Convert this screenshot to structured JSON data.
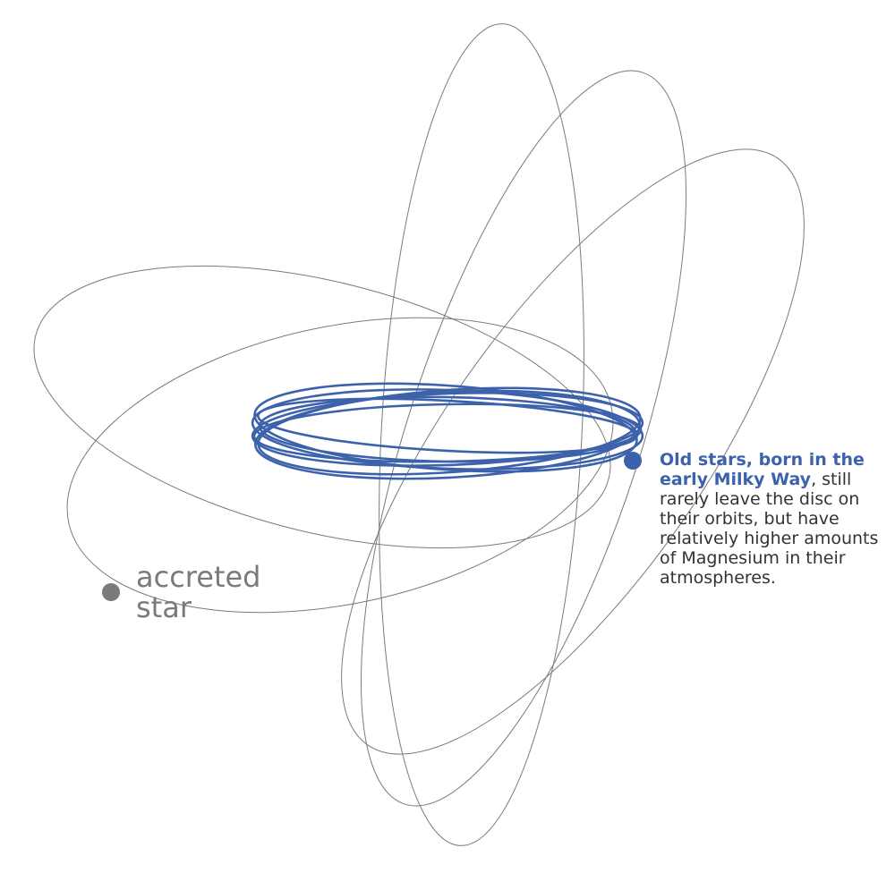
{
  "colors": {
    "orbit_gray": "#7a7a7a",
    "orbit_blue": "#3c62ac",
    "text_dark": "#333333"
  },
  "accreted_star": {
    "line1": "accreted",
    "line2": "star"
  },
  "old_stars": {
    "highlight": "Old stars, born in the early Milky Way",
    "comma": ",",
    "body": " still rarely leave the disc on their orbits, but have relatively higher amounts of Magnesium in their atmospheres."
  }
}
